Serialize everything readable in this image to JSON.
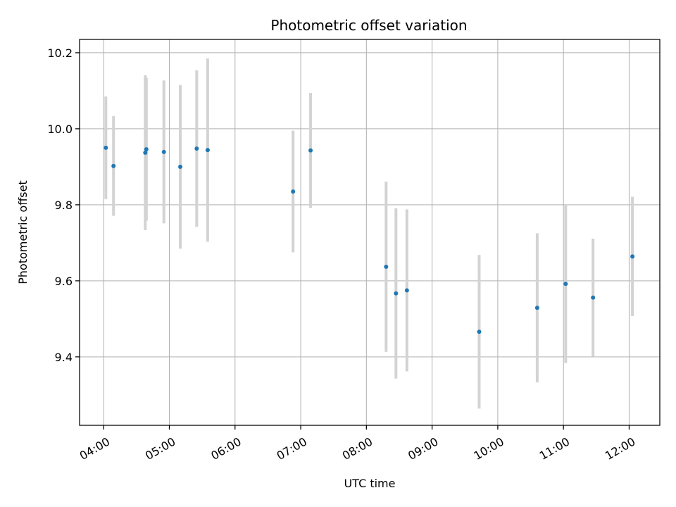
{
  "chart_data": {
    "type": "scatter",
    "title": "Photometric offset variation",
    "xlabel": "UTC time",
    "ylabel": "Photometric offset",
    "x_tick_labels": [
      "04:00",
      "05:00",
      "06:00",
      "07:00",
      "08:00",
      "09:00",
      "10:00",
      "11:00",
      "12:00"
    ],
    "y_ticks": [
      9.4,
      9.6,
      9.8,
      10.0,
      10.2
    ],
    "y_tick_labels": [
      "9.4",
      "9.6",
      "9.8",
      "10.0",
      "10.2"
    ],
    "xlim": [
      "03:38",
      "12:28"
    ],
    "ylim": [
      9.22,
      10.235
    ],
    "grid": true,
    "colors": {
      "marker": "#1f77b4",
      "errorbar": "#d3d3d3",
      "grid": "#b0b0b0"
    },
    "series": [
      {
        "points": [
          {
            "x": "04:02",
            "y": 9.95,
            "err": 0.135
          },
          {
            "x": "04:09",
            "y": 9.902,
            "err": 0.131
          },
          {
            "x": "04:38",
            "y": 9.937,
            "err": 0.204
          },
          {
            "x": "04:39",
            "y": 9.946,
            "err": 0.188
          },
          {
            "x": "04:55",
            "y": 9.939,
            "err": 0.188
          },
          {
            "x": "05:10",
            "y": 9.9,
            "err": 0.215
          },
          {
            "x": "05:25",
            "y": 9.948,
            "err": 0.206
          },
          {
            "x": "05:35",
            "y": 9.944,
            "err": 0.241
          },
          {
            "x": "06:53",
            "y": 9.835,
            "err": 0.16
          },
          {
            "x": "07:09",
            "y": 9.943,
            "err": 0.151
          },
          {
            "x": "08:18",
            "y": 9.637,
            "err": 0.224
          },
          {
            "x": "08:27",
            "y": 9.567,
            "err": 0.224
          },
          {
            "x": "08:37",
            "y": 9.575,
            "err": 0.213
          },
          {
            "x": "09:43",
            "y": 9.466,
            "err": 0.202
          },
          {
            "x": "10:36",
            "y": 9.529,
            "err": 0.196
          },
          {
            "x": "11:02",
            "y": 9.592,
            "err": 0.208
          },
          {
            "x": "11:27",
            "y": 9.556,
            "err": 0.155
          },
          {
            "x": "12:03",
            "y": 9.664,
            "err": 0.157
          }
        ]
      }
    ]
  }
}
